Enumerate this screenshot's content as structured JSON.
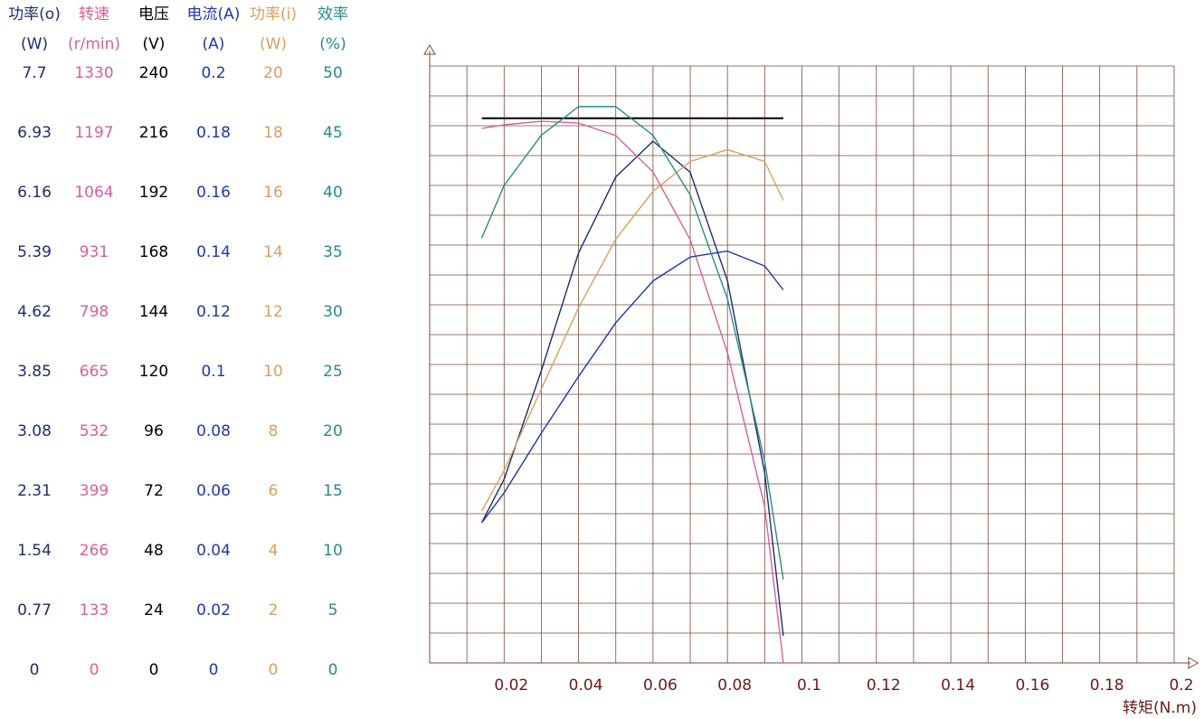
{
  "chart_data": {
    "type": "line",
    "x_label": "转矩(N.m)",
    "x": [
      0.014,
      0.02,
      0.03,
      0.04,
      0.05,
      0.06,
      0.07,
      0.08,
      0.09,
      0.095
    ],
    "xlim": [
      0,
      0.2
    ],
    "xticks": [
      0.02,
      0.04,
      0.06,
      0.08,
      0.1,
      0.12,
      0.14,
      0.16,
      0.18,
      0.2
    ],
    "grid": true,
    "series": [
      {
        "name": "功率(o)",
        "unit": "(W)",
        "color": "#1f2d6b",
        "ylim": [
          0,
          7.7
        ],
        "yticks": [
          0,
          0.77,
          1.54,
          2.31,
          3.08,
          3.85,
          4.62,
          5.39,
          6.16,
          6.93,
          7.7
        ],
        "values": [
          1.81,
          2.37,
          3.77,
          5.29,
          6.27,
          6.73,
          6.33,
          4.93,
          2.45,
          0.35
        ]
      },
      {
        "name": "转速",
        "unit": "(r/min)",
        "color": "#d9609a",
        "ylim": [
          0,
          1330
        ],
        "yticks": [
          0,
          133,
          266,
          399,
          532,
          665,
          798,
          931,
          1064,
          1197,
          1330
        ],
        "values": [
          1191,
          1199,
          1207,
          1203,
          1175,
          1094,
          943,
          691,
          348,
          0
        ]
      },
      {
        "name": "电压",
        "unit": "(V)",
        "color": "#000000",
        "ylim": [
          0,
          240
        ],
        "yticks": [
          0,
          24,
          48,
          72,
          96,
          120,
          144,
          168,
          192,
          216,
          240
        ],
        "values": [
          219,
          219,
          219,
          219,
          219,
          219,
          219,
          219,
          219,
          219
        ]
      },
      {
        "name": "电流(A)",
        "unit": "(A)",
        "color": "#2236b0",
        "ylim": [
          0,
          0.2
        ],
        "yticks": [
          0,
          0.02,
          0.04,
          0.06,
          0.08,
          0.1,
          0.12,
          0.14,
          0.16,
          0.18,
          0.2
        ],
        "values": [
          0.047,
          0.057,
          0.077,
          0.096,
          0.114,
          0.128,
          0.136,
          0.138,
          0.133,
          0.125
        ]
      },
      {
        "name": "功率(i)",
        "unit": "(W)",
        "color": "#d8a060",
        "ylim": [
          0,
          20
        ],
        "yticks": [
          0,
          2,
          4,
          6,
          8,
          10,
          12,
          14,
          16,
          18,
          20
        ],
        "values": [
          5.09,
          6.45,
          9.18,
          11.9,
          14.2,
          15.8,
          16.8,
          17.2,
          16.8,
          15.5
        ]
      },
      {
        "name": "效率",
        "unit": "(%)",
        "color": "#2a8a8a",
        "ylim": [
          0,
          50
        ],
        "yticks": [
          0,
          5,
          10,
          15,
          20,
          25,
          30,
          35,
          40,
          45,
          50
        ],
        "values": [
          35.6,
          40,
          44.2,
          46.6,
          46.6,
          44.2,
          39.2,
          30.5,
          16.9,
          7.0
        ]
      }
    ]
  }
}
